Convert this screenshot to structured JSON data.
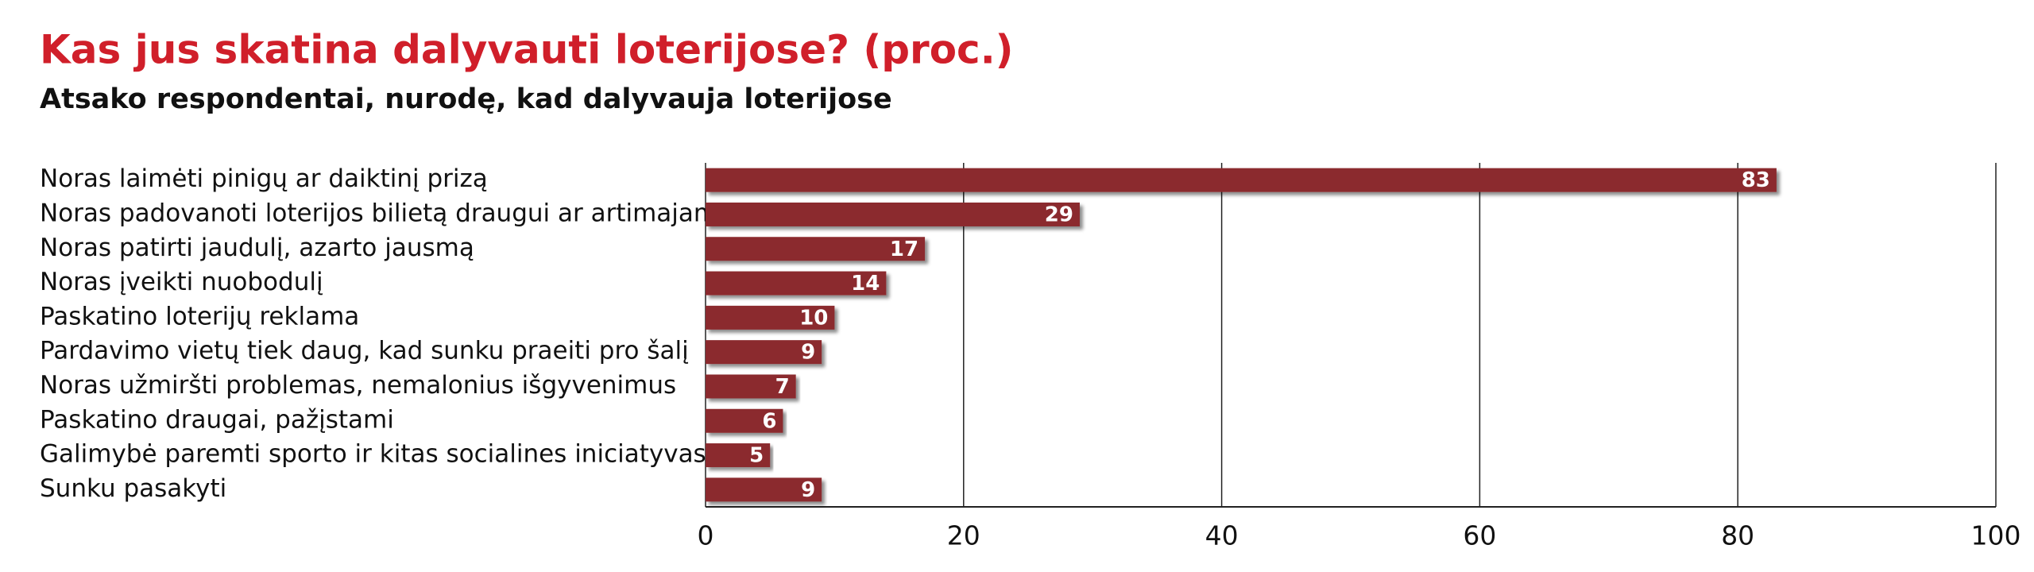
{
  "chart_data": {
    "type": "bar",
    "orientation": "horizontal",
    "title": "Kas jus skatina dalyvauti loterijose? (proc.)",
    "subtitle": "Atsako respondentai, nurodę, kad dalyvauja loterijose",
    "categories": [
      "Noras laimėti pinigų ar daiktinį prizą",
      "Noras padovanoti loterijos bilietą draugui ar artimajam",
      "Noras patirti jaudulį, azarto jausmą",
      "Noras įveikti nuobodulį",
      "Paskatino loterijų reklama",
      "Pardavimo vietų tiek daug, kad sunku praeiti pro šalį",
      "Noras užmiršti problemas, nemalonius išgyvenimus",
      "Paskatino draugai, pažįstami",
      "Galimybė paremti sporto ir kitas socialines iniciatyvas",
      "Sunku pasakyti"
    ],
    "values": [
      83,
      29,
      17,
      14,
      10,
      9,
      7,
      6,
      5,
      9
    ],
    "color": "#8b2a2e",
    "xlim": [
      0,
      100
    ],
    "xticks": [
      0,
      20,
      40,
      60,
      80,
      100
    ],
    "grid": true
  }
}
